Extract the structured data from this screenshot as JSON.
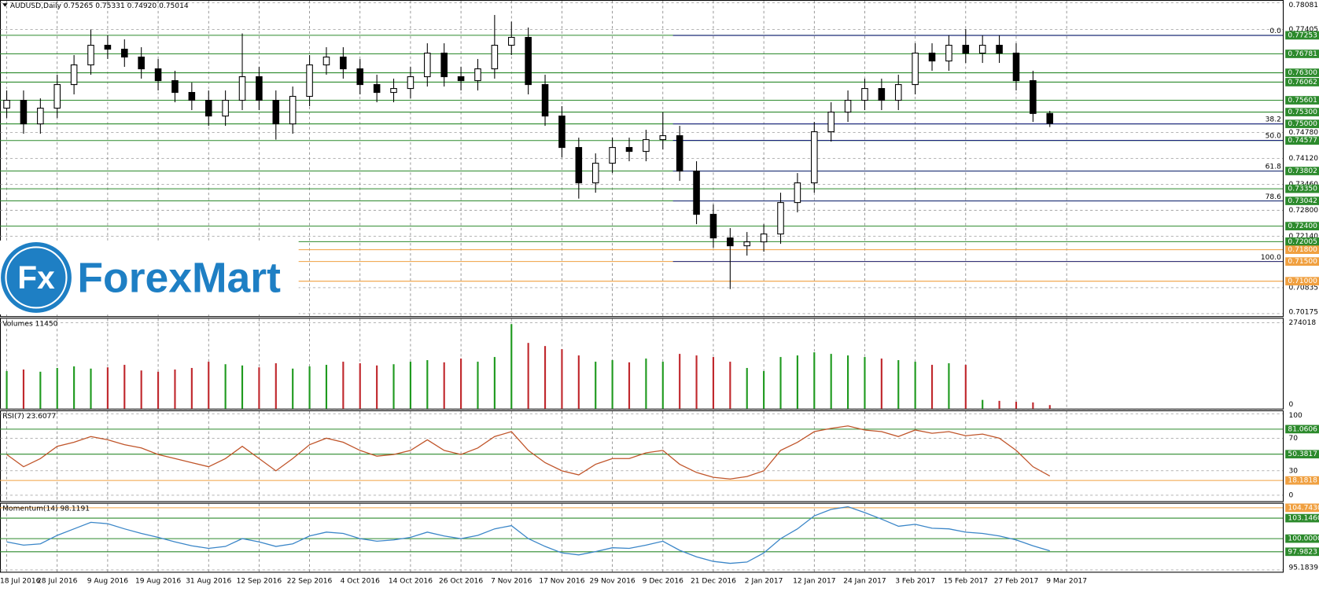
{
  "logo": {
    "mark": "Fx",
    "name": "ForexMart"
  },
  "chart_data": [
    {
      "type": "candlestick",
      "title": "AUDUSD,Daily  0.75265 0.75331 0.74920 0.75014",
      "categories": [
        "18 Jul 2016",
        null,
        null,
        "28 Jul 2016",
        null,
        null,
        "9 Aug 2016",
        null,
        null,
        "19 Aug 2016",
        null,
        null,
        "31 Aug 2016",
        null,
        null,
        "12 Sep 2016",
        null,
        null,
        "22 Sep 2016",
        null,
        null,
        "4 Oct 2016",
        null,
        null,
        "14 Oct 2016",
        null,
        null,
        "26 Oct 2016",
        null,
        null,
        "7 Nov 2016",
        null,
        null,
        "17 Nov 2016",
        null,
        null,
        "29 Nov 2016",
        null,
        null,
        "9 Dec 2016",
        null,
        null,
        "21 Dec 2016",
        null,
        null,
        "2 Jan 2017",
        null,
        null,
        "12 Jan 2017",
        null,
        null,
        "24 Jan 2017",
        null,
        null,
        "3 Feb 2017",
        null,
        null,
        "15 Feb 2017",
        null,
        null,
        "27 Feb 2017",
        null,
        null,
        "9 Mar 2017"
      ],
      "opens": [
        0.754,
        0.756,
        0.75,
        0.754,
        0.76,
        0.765,
        0.77,
        0.769,
        0.767,
        0.764,
        0.761,
        0.758,
        0.756,
        0.752,
        0.756,
        0.762,
        0.756,
        0.75,
        0.757,
        0.765,
        0.767,
        0.764,
        0.76,
        0.758,
        0.759,
        0.762,
        0.768,
        0.762,
        0.761,
        0.764,
        0.77,
        0.772,
        0.76,
        0.752,
        0.744,
        0.735,
        0.74,
        0.744,
        0.743,
        0.746,
        0.747,
        0.738,
        0.727,
        0.721,
        0.719,
        0.72,
        0.722,
        0.73,
        0.735,
        0.748,
        0.753,
        0.756,
        0.759,
        0.756,
        0.76,
        0.768,
        0.766,
        0.77,
        0.768,
        0.77,
        0.768,
        0.761,
        0.75265,
        null
      ],
      "highs": [
        0.7585,
        0.7585,
        0.7565,
        0.7625,
        0.7675,
        0.774,
        0.7725,
        0.7715,
        0.7695,
        0.7665,
        0.7635,
        0.7605,
        0.7585,
        0.7585,
        0.773,
        0.7645,
        0.7585,
        0.7595,
        0.7675,
        0.7695,
        0.7695,
        0.7665,
        0.7625,
        0.7615,
        0.7645,
        0.7705,
        0.7705,
        0.7645,
        0.7665,
        0.7777,
        0.776,
        0.7745,
        0.7625,
        0.7545,
        0.7465,
        0.7425,
        0.7465,
        0.7465,
        0.7485,
        0.753,
        0.7495,
        0.7405,
        0.7295,
        0.7235,
        0.7225,
        0.7245,
        0.7325,
        0.7375,
        0.7505,
        0.7555,
        0.7585,
        0.7615,
        0.7615,
        0.7625,
        0.7705,
        0.7705,
        0.7725,
        0.7741,
        0.7725,
        0.7725,
        0.7705,
        0.7635,
        0.75331,
        null
      ],
      "lows": [
        0.7515,
        0.7475,
        0.7475,
        0.7515,
        0.7575,
        0.7625,
        0.7665,
        0.7645,
        0.7615,
        0.7585,
        0.7555,
        0.7535,
        0.7495,
        0.7495,
        0.7535,
        0.7535,
        0.746,
        0.7475,
        0.7545,
        0.7625,
        0.7615,
        0.7575,
        0.7555,
        0.7555,
        0.7565,
        0.7595,
        0.7595,
        0.7585,
        0.7585,
        0.7615,
        0.7675,
        0.7575,
        0.7495,
        0.7415,
        0.731,
        0.7325,
        0.7375,
        0.7405,
        0.7405,
        0.7435,
        0.7355,
        0.7245,
        0.7185,
        0.708,
        0.7165,
        0.7175,
        0.7195,
        0.7275,
        0.7325,
        0.7455,
        0.7505,
        0.7535,
        0.7535,
        0.7535,
        0.7575,
        0.7635,
        0.7635,
        0.7655,
        0.7655,
        0.7655,
        0.7585,
        0.7505,
        0.7492,
        null
      ],
      "closes": [
        0.756,
        0.75,
        0.754,
        0.76,
        0.765,
        0.77,
        0.769,
        0.767,
        0.764,
        0.761,
        0.758,
        0.756,
        0.752,
        0.756,
        0.762,
        0.756,
        0.75,
        0.757,
        0.765,
        0.767,
        0.764,
        0.76,
        0.758,
        0.759,
        0.762,
        0.768,
        0.762,
        0.761,
        0.764,
        0.77,
        0.772,
        0.76,
        0.752,
        0.744,
        0.735,
        0.74,
        0.744,
        0.743,
        0.746,
        0.747,
        0.738,
        0.727,
        0.721,
        0.719,
        0.72,
        0.722,
        0.73,
        0.735,
        0.748,
        0.753,
        0.756,
        0.759,
        0.756,
        0.76,
        0.768,
        0.766,
        0.77,
        0.768,
        0.77,
        0.768,
        0.761,
        0.75265,
        0.75014,
        null
      ],
      "up_color": "#ffffff",
      "down_color": "#000000",
      "ylim": [
        0.7011,
        0.7815
      ],
      "yticks": [
        0.78081,
        0.77405,
        {
          "value": 0.7478,
          "label": "0.74780"
        },
        {
          "value": 0.7412,
          "label": "0.74120"
        },
        {
          "value": 0.7346,
          "label": "0.73460"
        },
        {
          "value": 0.728,
          "label": "0.72800"
        },
        {
          "value": 0.7214,
          "label": "0.72140"
        },
        0.70835,
        0.70175
      ],
      "levels": [
        {
          "value": 0.77253,
          "label": "0.77253",
          "color": "#2c8a2c"
        },
        {
          "value": 0.76781,
          "label": "0.76781",
          "color": "#2c8a2c"
        },
        {
          "value": 0.763,
          "label": "0.76300",
          "color": "#2c8a2c"
        },
        {
          "value": 0.76062,
          "label": "0.76062",
          "color": "#2c8a2c"
        },
        {
          "value": 0.75601,
          "label": "0.75601",
          "color": "#2c8a2c"
        },
        {
          "value": 0.753,
          "label": "0.75300",
          "color": "#2c8a2c"
        },
        {
          "value": 0.75,
          "label": "0.75000",
          "color": "#2c8a2c"
        },
        {
          "value": 0.74577,
          "label": "0.74577",
          "color": "#2c8a2c"
        },
        {
          "value": 0.73802,
          "label": "0.73802",
          "color": "#2c8a2c"
        },
        {
          "value": 0.7335,
          "label": "0.73350",
          "color": "#2c8a2c"
        },
        {
          "value": 0.73042,
          "label": "0.73042",
          "color": "#2c8a2c"
        },
        {
          "value": 0.724,
          "label": "0.72400",
          "color": "#2c8a2c"
        },
        {
          "value": 0.72005,
          "label": "0.72005",
          "color": "#2c8a2c"
        },
        {
          "value": 0.718,
          "label": "0.71800",
          "color": "#f0a040"
        },
        {
          "value": 0.715,
          "label": "0.71500",
          "color": "#f0a040"
        },
        {
          "value": 0.71,
          "label": "0.71000",
          "color": "#f0a040"
        }
      ],
      "fibonacci": {
        "color": "#1a237e",
        "levels": [
          {
            "label": "0.0",
            "value": 0.7725
          },
          {
            "label": "38.2",
            "value": 0.75
          },
          {
            "label": "50.0",
            "value": 0.7458
          },
          {
            "label": "61.8",
            "value": 0.738
          },
          {
            "label": "78.6",
            "value": 0.7304
          },
          {
            "label": "100.0",
            "value": 0.715
          }
        ]
      },
      "grid": true
    },
    {
      "type": "bar",
      "title": "Volumes 11450",
      "values": [
        120000,
        125000,
        118000,
        130000,
        135000,
        128000,
        132000,
        140000,
        122000,
        118000,
        125000,
        130000,
        150000,
        142000,
        138000,
        132000,
        145000,
        128000,
        135000,
        140000,
        150000,
        145000,
        138000,
        142000,
        150000,
        155000,
        148000,
        160000,
        150000,
        165000,
        270000,
        210000,
        200000,
        190000,
        170000,
        150000,
        155000,
        148000,
        160000,
        150000,
        175000,
        170000,
        165000,
        150000,
        130000,
        120000,
        165000,
        170000,
        180000,
        175000,
        170000,
        165000,
        160000,
        155000,
        150000,
        140000,
        145000,
        140000,
        28000,
        25000,
        22000,
        20000,
        11450,
        null
      ],
      "up_color": "#1f9a1f",
      "down_color": "#c0282d",
      "ylim": [
        0,
        290000
      ],
      "yticks": [
        274018,
        0
      ]
    },
    {
      "type": "line",
      "title": "RSI(7) 23.6077",
      "color": "#c0552a",
      "values": [
        50,
        35,
        45,
        60,
        65,
        72,
        68,
        62,
        58,
        50,
        45,
        40,
        35,
        45,
        60,
        45,
        30,
        45,
        62,
        70,
        65,
        55,
        48,
        50,
        55,
        68,
        55,
        50,
        58,
        72,
        78,
        55,
        40,
        30,
        25,
        38,
        45,
        45,
        52,
        55,
        38,
        28,
        22,
        20,
        23,
        30,
        55,
        65,
        78,
        82,
        85,
        80,
        78,
        72,
        80,
        76,
        78,
        73,
        75,
        70,
        55,
        35,
        23.6077,
        null
      ],
      "ylim": [
        -7.2,
        104.1
      ],
      "yticks": [
        100,
        70,
        30,
        0
      ],
      "levels": [
        {
          "value": 81.0606,
          "label": "81.0606",
          "color": "#2c8a2c"
        },
        {
          "value": 50.3817,
          "label": "50.3817",
          "color": "#2c8a2c"
        },
        {
          "value": 18.1818,
          "label": "18.1818",
          "color": "#f0a040"
        }
      ]
    },
    {
      "type": "line",
      "title": "Momentum(14) 98.1191",
      "color": "#3b86c8",
      "values": [
        99.5,
        99.0,
        99.2,
        100.5,
        101.5,
        102.5,
        102.3,
        101.5,
        100.8,
        100.2,
        99.5,
        98.9,
        98.5,
        98.8,
        100.0,
        99.5,
        98.8,
        99.2,
        100.4,
        101.0,
        100.8,
        100.0,
        99.6,
        99.8,
        100.2,
        101.0,
        100.4,
        100.0,
        100.5,
        101.5,
        102.0,
        100.0,
        98.8,
        97.8,
        97.5,
        98.0,
        98.6,
        98.5,
        99.0,
        99.6,
        98.2,
        97.2,
        96.5,
        96.2,
        96.4,
        97.8,
        100.0,
        101.5,
        103.5,
        104.5,
        104.9,
        104.0,
        103.0,
        101.9,
        102.2,
        101.6,
        101.5,
        101.0,
        100.8,
        100.4,
        99.8,
        98.9,
        98.1191,
        null
      ],
      "ylim": [
        94.9,
        105.5
      ],
      "yticks": [
        95.1839
      ],
      "levels": [
        {
          "value": 104.743,
          "label": "104.7430",
          "color": "#f0a040"
        },
        {
          "value": 103.146,
          "label": "103.1460",
          "color": "#2c8a2c"
        },
        {
          "value": 100,
          "label": "100.0000",
          "color": "#2c8a2c"
        },
        {
          "value": 97.9823,
          "label": "97.9823",
          "color": "#2c8a2c"
        }
      ]
    }
  ]
}
